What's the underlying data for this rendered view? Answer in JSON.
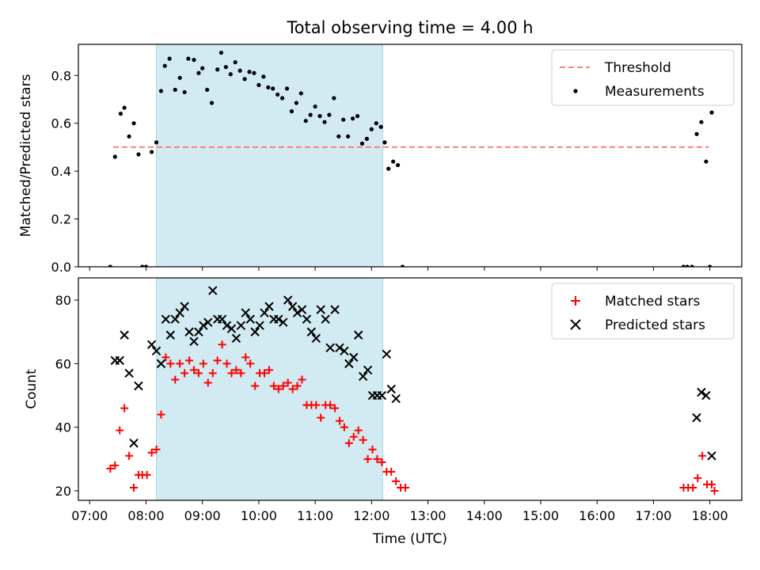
{
  "title": "Total observing time = 4.00 h",
  "chart_data": [
    {
      "type": "scatter",
      "ylabel": "Matched/Predicted stars",
      "ylim": [
        0,
        0.93
      ],
      "yticks": [
        0.0,
        0.2,
        0.4,
        0.6,
        0.8
      ],
      "ytick_labels": [
        "0.0",
        "0.2",
        "0.4",
        "0.6",
        "0.8"
      ],
      "threshold": {
        "name": "Threshold",
        "value": 0.5,
        "x_range": [
          "07:25",
          "17:59"
        ],
        "color": "#ff7f7f"
      },
      "shaded_span": {
        "x_range": [
          "08:11",
          "12:12"
        ],
        "color": "#add8e6"
      },
      "legend": {
        "placement": "top-right",
        "entries": [
          "Threshold",
          "Measurements"
        ]
      },
      "series": [
        {
          "name": "Measurements",
          "color": "#000000",
          "points": [
            [
              "07:22",
              0.0
            ],
            [
              "07:27",
              0.46
            ],
            [
              "07:33",
              0.64
            ],
            [
              "07:37",
              0.665
            ],
            [
              "07:42",
              0.545
            ],
            [
              "07:47",
              0.6
            ],
            [
              "07:52",
              0.47
            ],
            [
              "07:56",
              0.0
            ],
            [
              "08:00",
              0.0
            ],
            [
              "08:06",
              0.48
            ],
            [
              "08:11",
              0.52
            ],
            [
              "08:16",
              0.735
            ],
            [
              "08:20",
              0.84
            ],
            [
              "08:25",
              0.87
            ],
            [
              "08:31",
              0.74
            ],
            [
              "08:36",
              0.79
            ],
            [
              "08:41",
              0.73
            ],
            [
              "08:45",
              0.87
            ],
            [
              "08:51",
              0.865
            ],
            [
              "08:56",
              0.81
            ],
            [
              "09:00",
              0.83
            ],
            [
              "09:05",
              0.74
            ],
            [
              "09:10",
              0.685
            ],
            [
              "09:16",
              0.825
            ],
            [
              "09:20",
              0.895
            ],
            [
              "09:25",
              0.835
            ],
            [
              "09:30",
              0.805
            ],
            [
              "09:35",
              0.855
            ],
            [
              "09:40",
              0.82
            ],
            [
              "09:45",
              0.785
            ],
            [
              "09:50",
              0.815
            ],
            [
              "09:55",
              0.81
            ],
            [
              "10:00",
              0.76
            ],
            [
              "10:05",
              0.795
            ],
            [
              "10:10",
              0.75
            ],
            [
              "10:15",
              0.745
            ],
            [
              "10:20",
              0.72
            ],
            [
              "10:25",
              0.705
            ],
            [
              "10:30",
              0.745
            ],
            [
              "10:35",
              0.65
            ],
            [
              "10:40",
              0.685
            ],
            [
              "10:45",
              0.725
            ],
            [
              "10:50",
              0.61
            ],
            [
              "10:55",
              0.635
            ],
            [
              "11:00",
              0.67
            ],
            [
              "11:05",
              0.63
            ],
            [
              "11:10",
              0.605
            ],
            [
              "11:15",
              0.635
            ],
            [
              "11:20",
              0.705
            ],
            [
              "11:25",
              0.545
            ],
            [
              "11:30",
              0.615
            ],
            [
              "11:35",
              0.545
            ],
            [
              "11:40",
              0.62
            ],
            [
              "11:45",
              0.63
            ],
            [
              "11:50",
              0.515
            ],
            [
              "11:55",
              0.535
            ],
            [
              "12:00",
              0.575
            ],
            [
              "12:05",
              0.6
            ],
            [
              "12:10",
              0.585
            ],
            [
              "12:14",
              0.52
            ],
            [
              "12:18",
              0.41
            ],
            [
              "12:23",
              0.44
            ],
            [
              "12:28",
              0.425
            ],
            [
              "12:33",
              0.0
            ],
            [
              "17:32",
              0.0
            ],
            [
              "17:36",
              0.0
            ],
            [
              "17:41",
              0.0
            ],
            [
              "17:46",
              0.555
            ],
            [
              "17:51",
              0.605
            ],
            [
              "17:56",
              0.44
            ],
            [
              "18:00",
              0.0
            ],
            [
              "18:02",
              0.645
            ]
          ]
        }
      ]
    },
    {
      "type": "scatter",
      "xlabel": "Time (UTC)",
      "ylabel": "Count",
      "ylim": [
        17,
        87
      ],
      "yticks": [
        20,
        40,
        60,
        80
      ],
      "ytick_labels": [
        "20",
        "40",
        "60",
        "80"
      ],
      "xlim": [
        "06:48",
        "18:34"
      ],
      "xticks": [
        "07:00",
        "08:00",
        "09:00",
        "10:00",
        "11:00",
        "12:00",
        "13:00",
        "14:00",
        "15:00",
        "16:00",
        "17:00",
        "18:00"
      ],
      "shaded_span": {
        "x_range": [
          "08:11",
          "12:12"
        ],
        "color": "#add8e6"
      },
      "legend": {
        "placement": "top-right",
        "entries": [
          "Matched stars",
          "Predicted stars"
        ]
      },
      "series": [
        {
          "name": "Matched stars",
          "color": "#ff0000",
          "marker": "plus",
          "points": [
            [
              "07:22",
              27
            ],
            [
              "07:27",
              28
            ],
            [
              "07:32",
              39
            ],
            [
              "07:37",
              46
            ],
            [
              "07:42",
              31
            ],
            [
              "07:47",
              21
            ],
            [
              "07:52",
              25
            ],
            [
              "07:56",
              25
            ],
            [
              "08:01",
              25
            ],
            [
              "08:06",
              32
            ],
            [
              "08:11",
              33
            ],
            [
              "08:16",
              44
            ],
            [
              "08:21",
              62
            ],
            [
              "08:26",
              60
            ],
            [
              "08:31",
              55
            ],
            [
              "08:36",
              60
            ],
            [
              "08:41",
              57
            ],
            [
              "08:46",
              61
            ],
            [
              "08:51",
              58
            ],
            [
              "08:56",
              57
            ],
            [
              "09:01",
              60
            ],
            [
              "09:06",
              54
            ],
            [
              "09:11",
              57
            ],
            [
              "09:16",
              61
            ],
            [
              "09:21",
              66
            ],
            [
              "09:26",
              60
            ],
            [
              "09:31",
              57
            ],
            [
              "09:36",
              58
            ],
            [
              "09:41",
              57
            ],
            [
              "09:46",
              62
            ],
            [
              "09:51",
              60
            ],
            [
              "09:56",
              53
            ],
            [
              "10:01",
              57
            ],
            [
              "10:06",
              57
            ],
            [
              "10:11",
              58
            ],
            [
              "10:16",
              53
            ],
            [
              "10:21",
              52
            ],
            [
              "10:26",
              53
            ],
            [
              "10:31",
              54
            ],
            [
              "10:36",
              52
            ],
            [
              "10:41",
              53
            ],
            [
              "10:46",
              55
            ],
            [
              "10:51",
              47
            ],
            [
              "10:56",
              47
            ],
            [
              "11:01",
              47
            ],
            [
              "11:06",
              43
            ],
            [
              "11:11",
              47
            ],
            [
              "11:16",
              47
            ],
            [
              "11:21",
              46
            ],
            [
              "11:26",
              42
            ],
            [
              "11:31",
              40
            ],
            [
              "11:36",
              35
            ],
            [
              "11:41",
              37
            ],
            [
              "11:46",
              39
            ],
            [
              "11:51",
              36
            ],
            [
              "11:56",
              30
            ],
            [
              "12:01",
              33
            ],
            [
              "12:06",
              30
            ],
            [
              "12:11",
              29
            ],
            [
              "12:16",
              26
            ],
            [
              "12:21",
              26
            ],
            [
              "12:26",
              23
            ],
            [
              "12:31",
              21
            ],
            [
              "12:36",
              21
            ],
            [
              "17:32",
              21
            ],
            [
              "17:37",
              21
            ],
            [
              "17:42",
              21
            ],
            [
              "17:47",
              24
            ],
            [
              "17:52",
              31
            ],
            [
              "17:57",
              22
            ],
            [
              "18:02",
              22
            ],
            [
              "18:05",
              20
            ]
          ]
        },
        {
          "name": "Predicted stars",
          "color": "#000000",
          "marker": "x",
          "points": [
            [
              "07:27",
              61
            ],
            [
              "07:32",
              61
            ],
            [
              "07:37",
              69
            ],
            [
              "07:42",
              57
            ],
            [
              "07:47",
              35
            ],
            [
              "07:52",
              53
            ],
            [
              "08:06",
              66
            ],
            [
              "08:11",
              64
            ],
            [
              "08:16",
              60
            ],
            [
              "08:21",
              74
            ],
            [
              "08:26",
              69
            ],
            [
              "08:31",
              74
            ],
            [
              "08:36",
              76
            ],
            [
              "08:41",
              78
            ],
            [
              "08:46",
              70
            ],
            [
              "08:51",
              67
            ],
            [
              "08:56",
              70
            ],
            [
              "09:01",
              72
            ],
            [
              "09:06",
              73
            ],
            [
              "09:11",
              83
            ],
            [
              "09:16",
              74
            ],
            [
              "09:21",
              74
            ],
            [
              "09:26",
              72
            ],
            [
              "09:31",
              71
            ],
            [
              "09:36",
              68
            ],
            [
              "09:41",
              72
            ],
            [
              "09:46",
              76
            ],
            [
              "09:51",
              74
            ],
            [
              "09:56",
              70
            ],
            [
              "10:01",
              72
            ],
            [
              "10:06",
              76
            ],
            [
              "10:11",
              78
            ],
            [
              "10:16",
              74
            ],
            [
              "10:21",
              74
            ],
            [
              "10:26",
              73
            ],
            [
              "10:31",
              80
            ],
            [
              "10:36",
              78
            ],
            [
              "10:41",
              76
            ],
            [
              "10:46",
              77
            ],
            [
              "10:51",
              74
            ],
            [
              "10:56",
              70
            ],
            [
              "11:01",
              68
            ],
            [
              "11:06",
              77
            ],
            [
              "11:11",
              74
            ],
            [
              "11:16",
              65
            ],
            [
              "11:21",
              77
            ],
            [
              "11:26",
              65
            ],
            [
              "11:31",
              64
            ],
            [
              "11:36",
              60
            ],
            [
              "11:41",
              62
            ],
            [
              "11:46",
              69
            ],
            [
              "11:51",
              56
            ],
            [
              "11:56",
              58
            ],
            [
              "12:01",
              50
            ],
            [
              "12:06",
              50
            ],
            [
              "12:11",
              50
            ],
            [
              "12:16",
              63
            ],
            [
              "12:21",
              52
            ],
            [
              "12:26",
              49
            ],
            [
              "17:46",
              43
            ],
            [
              "17:51",
              51
            ],
            [
              "17:56",
              50
            ],
            [
              "18:02",
              31
            ]
          ]
        }
      ]
    }
  ]
}
